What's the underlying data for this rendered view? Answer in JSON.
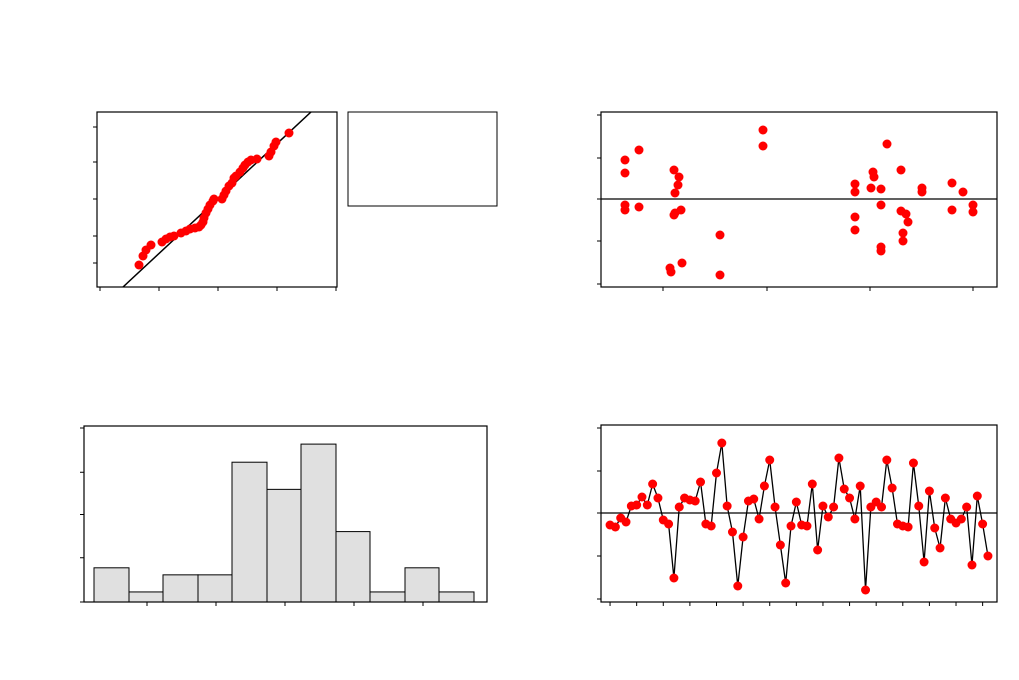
{
  "chart_data": [
    {
      "type": "scatter",
      "color": "#ff0000",
      "x": [
        42,
        46,
        49,
        54,
        65,
        69,
        73,
        77,
        84,
        89,
        93,
        98,
        102,
        104,
        106,
        107,
        109,
        111,
        113,
        116,
        117,
        125,
        127,
        129,
        132,
        135,
        137,
        139,
        143,
        146,
        148,
        151,
        154,
        160,
        172,
        174,
        177,
        179,
        192
      ],
      "values": [
        22,
        31,
        37,
        42,
        45,
        48,
        50,
        51,
        54,
        56,
        58,
        59,
        60,
        62,
        65,
        69,
        74,
        78,
        82,
        86,
        88,
        88,
        92,
        96,
        101,
        104,
        109,
        111,
        115,
        119,
        122,
        125,
        127,
        128,
        131,
        135,
        141,
        145,
        154
      ],
      "fit_line": {
        "x": [
          26,
          214
        ],
        "y": [
          0,
          175
        ]
      },
      "xlim": [
        0,
        240
      ],
      "ylim": [
        0,
        175
      ],
      "xticks": [
        3,
        62,
        121,
        180,
        239
      ],
      "yticks": [
        24,
        51,
        88,
        125,
        160
      ]
    },
    {
      "type": "scatter",
      "color": "#ff0000",
      "x": [
        24,
        24,
        38,
        24,
        24,
        38,
        73,
        78,
        77,
        74,
        80,
        74,
        73,
        69,
        70,
        81,
        119,
        119,
        162,
        162,
        254,
        254,
        254,
        254,
        272,
        273,
        270,
        280,
        280,
        286,
        300,
        300,
        305,
        307,
        302,
        302,
        280,
        280,
        321,
        321,
        351,
        351,
        362,
        372,
        372
      ],
      "values": [
        39,
        26,
        49,
        -6,
        -11,
        -8,
        29,
        22,
        14,
        6,
        -11,
        -14,
        -16,
        -69,
        -73,
        -64,
        -36,
        -76,
        69,
        53,
        15,
        7,
        -18,
        -31,
        27,
        22,
        11,
        10,
        -6,
        55,
        29,
        -12,
        -15,
        -23,
        -34,
        -42,
        -48,
        -52,
        11,
        7,
        16,
        -11,
        7,
        -6,
        -13
      ],
      "reference_line": 0,
      "xlim": [
        0,
        396
      ],
      "ylim": [
        -88,
        87
      ],
      "xticks": [
        62,
        166,
        269,
        372
      ],
      "yticks": [
        -85,
        -42,
        0,
        41,
        84
      ]
    },
    {
      "type": "histogram",
      "color": "#e0e0e0",
      "bins": [
        10,
        45,
        79,
        114,
        148,
        183,
        217,
        252,
        286,
        321,
        355,
        390
      ],
      "values": [
        34,
        10,
        27,
        27,
        139,
        112,
        157,
        70,
        10,
        34,
        10
      ],
      "xlim": [
        0,
        403
      ],
      "ylim": [
        0,
        175
      ],
      "xticks": [
        63,
        132,
        201,
        270,
        339
      ],
      "yticks": [
        0,
        44,
        87,
        129,
        173
      ]
    },
    {
      "type": "line",
      "color": "#ff0000",
      "line_color": "#000000",
      "x": [
        1,
        2,
        3,
        4,
        5,
        6,
        7,
        8,
        9,
        10,
        11,
        12,
        13,
        14,
        15,
        16,
        17,
        18,
        19,
        20,
        21,
        22,
        23,
        24,
        25,
        26,
        27,
        28,
        29,
        30,
        31,
        32,
        33,
        34,
        35,
        36,
        37,
        38,
        39,
        40,
        41,
        42,
        43,
        44,
        45,
        46,
        47,
        48,
        49,
        50,
        51,
        52,
        53,
        54,
        55,
        56,
        57,
        58,
        59,
        60,
        61,
        62,
        63,
        64,
        65,
        66,
        67,
        68,
        69,
        70,
        71,
        72
      ],
      "values": [
        -12,
        -14,
        -5,
        -9,
        7,
        8,
        16,
        8,
        29,
        15,
        -7,
        -11,
        -65,
        6,
        15,
        13,
        12,
        31,
        -11,
        -13,
        40,
        70,
        7,
        -19,
        -73,
        -24,
        12,
        14,
        -6,
        27,
        53,
        6,
        -32,
        -70,
        -13,
        11,
        -12,
        -13,
        29,
        -37,
        7,
        -4,
        6,
        55,
        24,
        15,
        -6,
        27,
        -77,
        6,
        11,
        6,
        53,
        25,
        -11,
        -13,
        -14,
        50,
        7,
        -49,
        22,
        -15,
        -35,
        15,
        -6,
        -10,
        -6,
        6,
        -52,
        17,
        -11,
        -43
      ],
      "reference_line": 0,
      "xlim": [
        -0.7,
        73.7
      ],
      "ylim": [
        -89,
        88
      ],
      "xticks": [
        1,
        6,
        11,
        16,
        21,
        26,
        31,
        36,
        41,
        46,
        51,
        56,
        61,
        66,
        71
      ],
      "yticks": [
        -86,
        -43,
        0,
        42,
        85
      ]
    }
  ]
}
